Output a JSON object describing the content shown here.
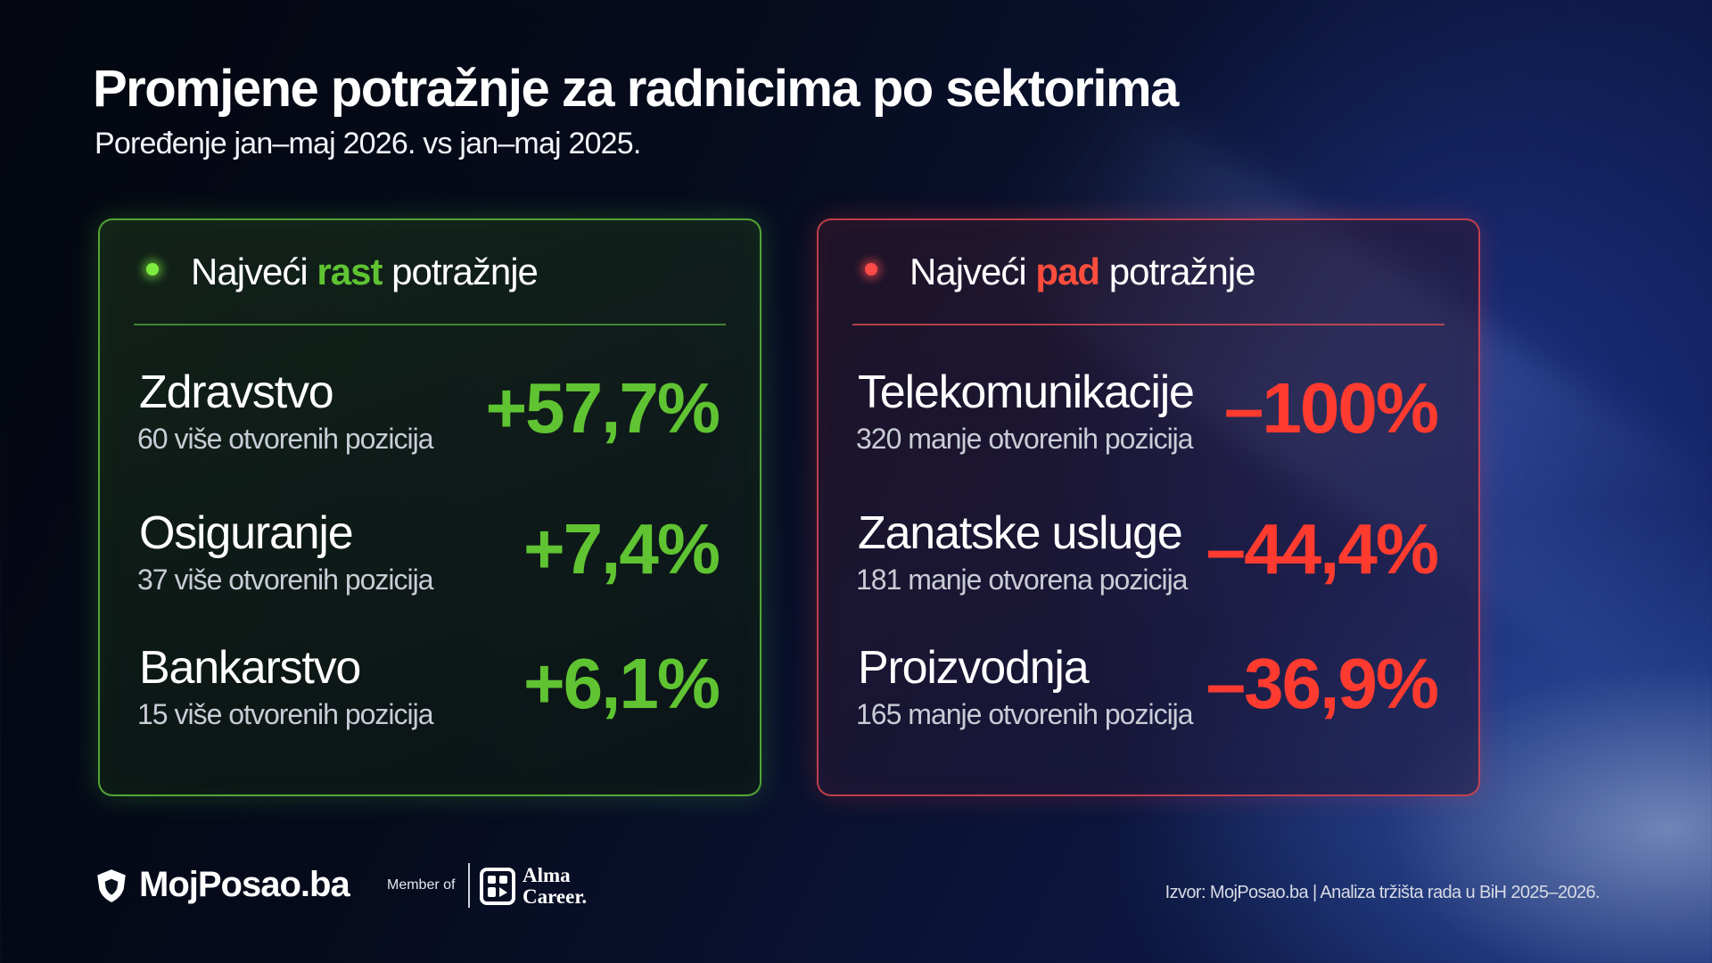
{
  "title": "Promjene potražnje za radnicima po sektorima",
  "subtitle": "Poređenje jan–maj 2026. vs jan–maj 2025.",
  "growth_panel": {
    "heading_prefix": "Najveći",
    "heading_highlight": "rast",
    "heading_suffix": "potražnje",
    "accent_color": "#5fc332",
    "items": [
      {
        "sector": "Zdravstvo",
        "detail": "60 više otvorenih pozicija",
        "change": "+57,7%"
      },
      {
        "sector": "Osiguranje",
        "detail": "37 više otvorenih pozicija",
        "change": "+7,4%"
      },
      {
        "sector": "Bankarstvo",
        "detail": "15 više otvorenih pozicija",
        "change": "+6,1%"
      }
    ]
  },
  "decline_panel": {
    "heading_prefix": "Najveći",
    "heading_highlight": "pad",
    "heading_suffix": "potražnje",
    "accent_color": "#ff3b30",
    "items": [
      {
        "sector": "Telekomunikacije",
        "detail": "320 manje otvorenih pozicija",
        "change": "–100%"
      },
      {
        "sector": "Zanatske usluge",
        "detail": "181 manje otvorena pozicija",
        "change": "–44,4%"
      },
      {
        "sector": "Proizvodnja",
        "detail": "165 manje otvorenih pozicija",
        "change": "–36,9%"
      }
    ]
  },
  "footer": {
    "brand": "MojPosao.ba",
    "member_of": "Member of",
    "partner_line1": "Alma",
    "partner_line2": "Career.",
    "source": "Izvor: MojPosao.ba | Analiza tržišta rada u BiH 2025–2026.",
    "brand_icon": "shield-logo-icon",
    "partner_icon": "alma-career-logo-icon"
  }
}
